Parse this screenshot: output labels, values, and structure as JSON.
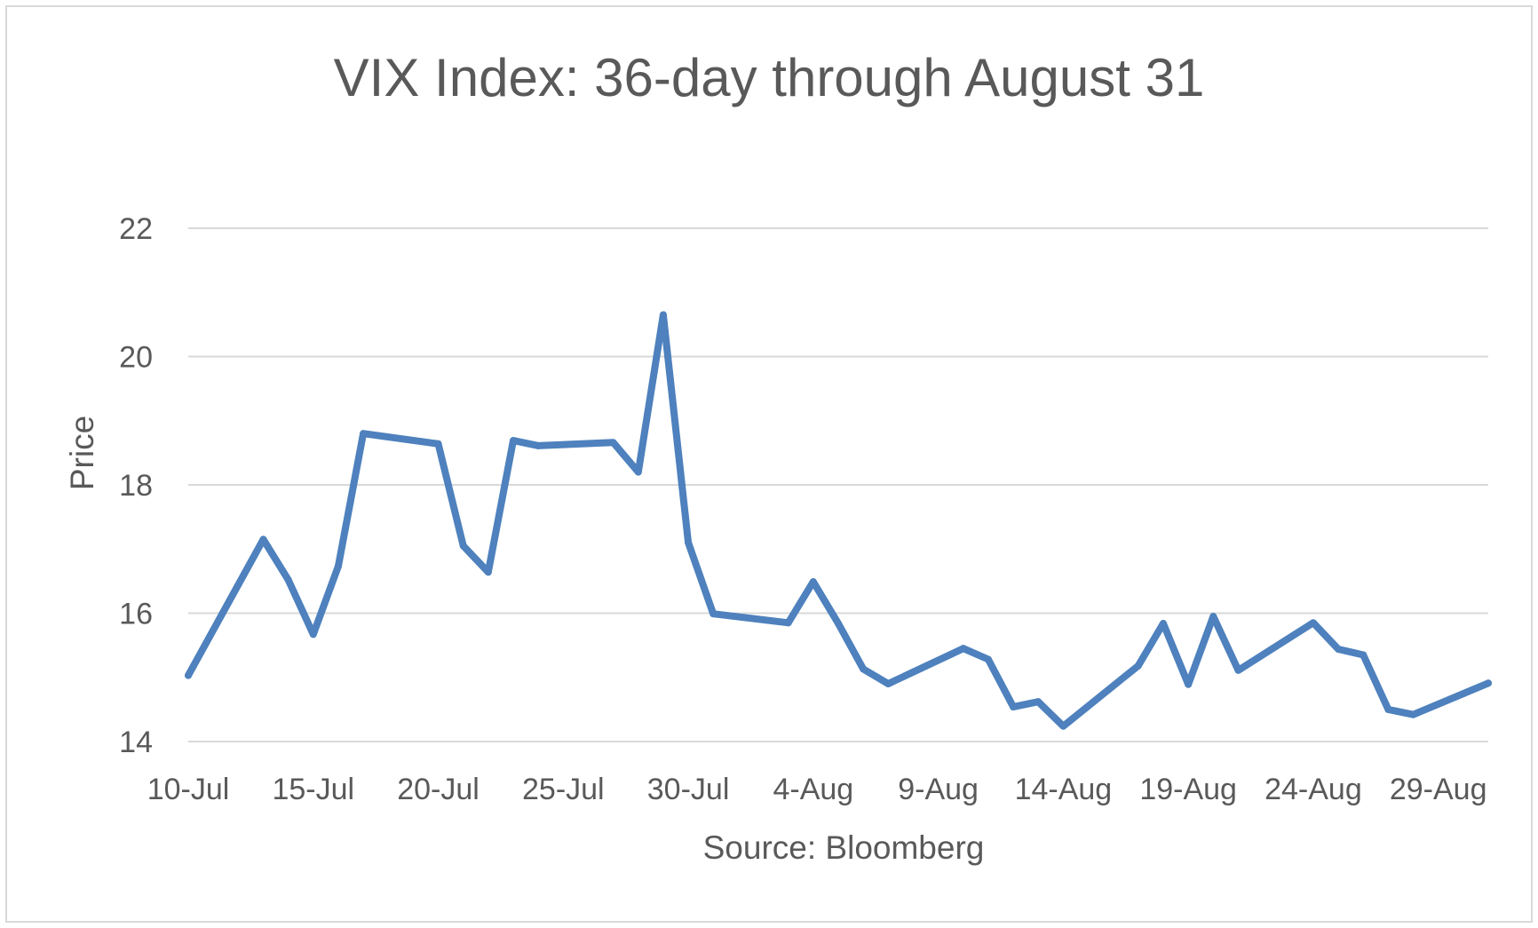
{
  "chart_data": {
    "type": "line",
    "title": "VIX Index: 36-day through August 31",
    "xlabel": "Source: Bloomberg",
    "ylabel": "Price",
    "ylim": [
      14,
      22
    ],
    "yticks": [
      14,
      16,
      18,
      20,
      22
    ],
    "xlim": [
      "10-Jul",
      "31-Aug"
    ],
    "xtick_labels": [
      "10-Jul",
      "15-Jul",
      "20-Jul",
      "25-Jul",
      "30-Jul",
      "4-Aug",
      "9-Aug",
      "14-Aug",
      "19-Aug",
      "24-Aug",
      "29-Aug"
    ],
    "grid": true,
    "legend": "none",
    "series_color": "#4e81bd",
    "series": [
      {
        "x": [
          "10-Jul",
          "13-Jul",
          "14-Jul",
          "15-Jul",
          "16-Jul",
          "17-Jul",
          "20-Jul",
          "21-Jul",
          "22-Jul",
          "23-Jul",
          "24-Jul",
          "27-Jul",
          "28-Jul",
          "29-Jul",
          "30-Jul",
          "31-Jul",
          "3-Aug",
          "4-Aug",
          "5-Aug",
          "6-Aug",
          "7-Aug",
          "10-Aug",
          "11-Aug",
          "12-Aug",
          "13-Aug",
          "14-Aug",
          "17-Aug",
          "18-Aug",
          "19-Aug",
          "20-Aug",
          "21-Aug",
          "24-Aug",
          "25-Aug",
          "26-Aug",
          "27-Aug",
          "28-Aug",
          "31-Aug"
        ],
        "values": [
          15.03,
          17.15,
          16.52,
          15.67,
          16.73,
          18.8,
          18.64,
          17.05,
          16.64,
          18.69,
          18.61,
          18.66,
          18.2,
          20.65,
          17.1,
          15.99,
          15.85,
          16.49,
          15.84,
          15.13,
          14.9,
          15.45,
          15.28,
          14.54,
          14.62,
          14.24,
          15.18,
          15.84,
          14.89,
          15.95,
          15.11,
          15.85,
          15.44,
          15.35,
          14.5,
          14.42,
          14.91
        ]
      }
    ]
  }
}
